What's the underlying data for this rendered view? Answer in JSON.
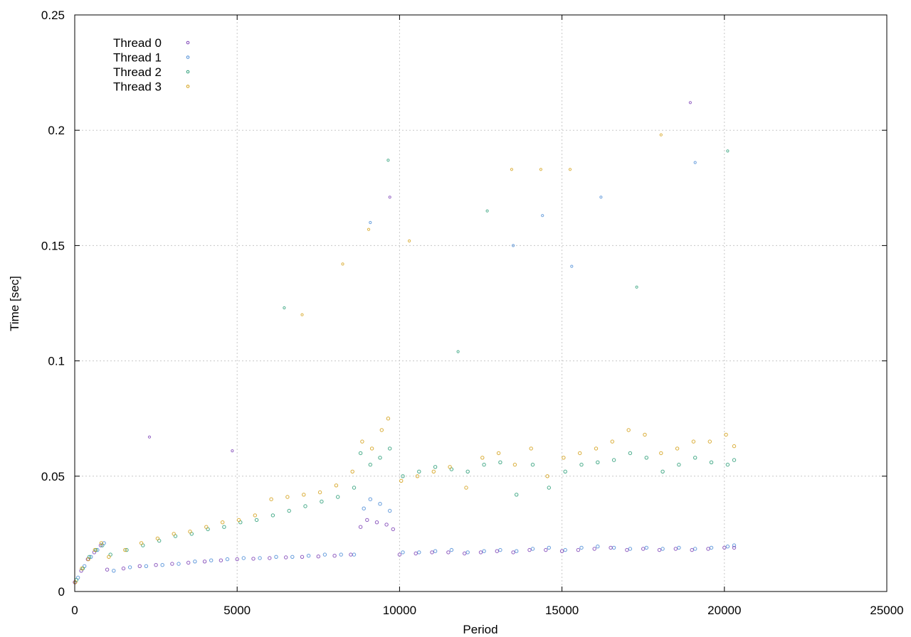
{
  "chart_data": {
    "type": "scatter",
    "title": "",
    "xlabel": "Period",
    "ylabel": "Time [sec]",
    "xlim": [
      0,
      25000
    ],
    "ylim": [
      0,
      0.25
    ],
    "x_ticks": [
      "0",
      "5000",
      "10000",
      "15000",
      "20000",
      "25000"
    ],
    "y_ticks": [
      "0",
      "0.05",
      "0.1",
      "0.15",
      "0.2",
      "0.25"
    ],
    "grid": true,
    "legend_position": "top-left",
    "series": [
      {
        "name": "Thread 0",
        "color": "#7b3fb5",
        "points": [
          [
            0,
            0.004
          ],
          [
            200,
            0.009
          ],
          [
            400,
            0.014
          ],
          [
            600,
            0.017
          ],
          [
            800,
            0.02
          ],
          [
            1000,
            0.0095
          ],
          [
            1500,
            0.01
          ],
          [
            2000,
            0.011
          ],
          [
            2500,
            0.0115
          ],
          [
            3000,
            0.012
          ],
          [
            3500,
            0.0125
          ],
          [
            4000,
            0.013
          ],
          [
            4500,
            0.0135
          ],
          [
            5000,
            0.014
          ],
          [
            5500,
            0.0142
          ],
          [
            6000,
            0.0145
          ],
          [
            6500,
            0.0148
          ],
          [
            7000,
            0.015
          ],
          [
            7500,
            0.0152
          ],
          [
            8000,
            0.0155
          ],
          [
            8500,
            0.016
          ],
          [
            8800,
            0.028
          ],
          [
            9000,
            0.031
          ],
          [
            9300,
            0.03
          ],
          [
            9600,
            0.029
          ],
          [
            9800,
            0.027
          ],
          [
            10000,
            0.016
          ],
          [
            10500,
            0.0165
          ],
          [
            11000,
            0.017
          ],
          [
            11500,
            0.017
          ],
          [
            12000,
            0.0165
          ],
          [
            12500,
            0.017
          ],
          [
            13000,
            0.0175
          ],
          [
            13500,
            0.017
          ],
          [
            14000,
            0.018
          ],
          [
            14500,
            0.018
          ],
          [
            15000,
            0.0175
          ],
          [
            15500,
            0.018
          ],
          [
            16000,
            0.0185
          ],
          [
            16500,
            0.019
          ],
          [
            17000,
            0.018
          ],
          [
            17500,
            0.0185
          ],
          [
            18000,
            0.018
          ],
          [
            18500,
            0.0185
          ],
          [
            19000,
            0.018
          ],
          [
            19500,
            0.0185
          ],
          [
            20000,
            0.019
          ],
          [
            20300,
            0.019
          ]
        ]
      },
      {
        "name": "Thread 1",
        "color": "#4a8bd6",
        "points": [
          [
            100,
            0.006
          ],
          [
            300,
            0.011
          ],
          [
            500,
            0.015
          ],
          [
            700,
            0.018
          ],
          [
            900,
            0.021
          ],
          [
            1200,
            0.009
          ],
          [
            1700,
            0.0105
          ],
          [
            2200,
            0.011
          ],
          [
            2700,
            0.0115
          ],
          [
            3200,
            0.012
          ],
          [
            3700,
            0.013
          ],
          [
            4200,
            0.0135
          ],
          [
            4700,
            0.014
          ],
          [
            5200,
            0.0145
          ],
          [
            5700,
            0.0145
          ],
          [
            6200,
            0.015
          ],
          [
            6700,
            0.015
          ],
          [
            7200,
            0.0155
          ],
          [
            7700,
            0.016
          ],
          [
            8200,
            0.016
          ],
          [
            8600,
            0.016
          ],
          [
            8900,
            0.036
          ],
          [
            9100,
            0.04
          ],
          [
            9400,
            0.038
          ],
          [
            9700,
            0.035
          ],
          [
            10100,
            0.017
          ],
          [
            10600,
            0.017
          ],
          [
            11100,
            0.0175
          ],
          [
            11600,
            0.018
          ],
          [
            12100,
            0.017
          ],
          [
            12600,
            0.0175
          ],
          [
            13100,
            0.018
          ],
          [
            13600,
            0.0175
          ],
          [
            14100,
            0.0185
          ],
          [
            14600,
            0.019
          ],
          [
            15100,
            0.018
          ],
          [
            15600,
            0.019
          ],
          [
            16100,
            0.0195
          ],
          [
            16600,
            0.019
          ],
          [
            17100,
            0.0185
          ],
          [
            17600,
            0.019
          ],
          [
            18100,
            0.0185
          ],
          [
            18600,
            0.019
          ],
          [
            19100,
            0.0185
          ],
          [
            19600,
            0.019
          ],
          [
            20100,
            0.0195
          ],
          [
            20300,
            0.02
          ]
        ]
      },
      {
        "name": "Thread 2",
        "color": "#2a9d77",
        "points": [
          [
            50,
            0.005
          ],
          [
            250,
            0.01
          ],
          [
            450,
            0.015
          ],
          [
            650,
            0.018
          ],
          [
            850,
            0.02
          ],
          [
            1100,
            0.016
          ],
          [
            1600,
            0.018
          ],
          [
            2100,
            0.02
          ],
          [
            2600,
            0.022
          ],
          [
            3100,
            0.024
          ],
          [
            3600,
            0.025
          ],
          [
            4100,
            0.027
          ],
          [
            4600,
            0.028
          ],
          [
            5100,
            0.03
          ],
          [
            5600,
            0.031
          ],
          [
            6100,
            0.033
          ],
          [
            6600,
            0.035
          ],
          [
            7100,
            0.037
          ],
          [
            7600,
            0.039
          ],
          [
            8100,
            0.041
          ],
          [
            8600,
            0.045
          ],
          [
            8800,
            0.06
          ],
          [
            9100,
            0.055
          ],
          [
            9400,
            0.058
          ],
          [
            9700,
            0.062
          ],
          [
            10100,
            0.05
          ],
          [
            10600,
            0.052
          ],
          [
            11100,
            0.054
          ],
          [
            11600,
            0.053
          ],
          [
            12100,
            0.052
          ],
          [
            12600,
            0.055
          ],
          [
            13100,
            0.056
          ],
          [
            13600,
            0.042
          ],
          [
            14100,
            0.055
          ],
          [
            14600,
            0.045
          ],
          [
            15100,
            0.052
          ],
          [
            15600,
            0.055
          ],
          [
            16100,
            0.056
          ],
          [
            16600,
            0.057
          ],
          [
            17100,
            0.06
          ],
          [
            17600,
            0.058
          ],
          [
            18100,
            0.052
          ],
          [
            18600,
            0.055
          ],
          [
            19100,
            0.058
          ],
          [
            19600,
            0.056
          ],
          [
            20100,
            0.055
          ],
          [
            20300,
            0.057
          ]
        ]
      },
      {
        "name": "Thread 3",
        "color": "#d4a017",
        "points": [
          [
            20,
            0.004
          ],
          [
            220,
            0.01
          ],
          [
            420,
            0.014
          ],
          [
            620,
            0.018
          ],
          [
            820,
            0.021
          ],
          [
            1050,
            0.015
          ],
          [
            1550,
            0.018
          ],
          [
            2050,
            0.021
          ],
          [
            2550,
            0.023
          ],
          [
            3050,
            0.025
          ],
          [
            3550,
            0.026
          ],
          [
            4050,
            0.028
          ],
          [
            4550,
            0.03
          ],
          [
            5050,
            0.031
          ],
          [
            5550,
            0.033
          ],
          [
            6050,
            0.04
          ],
          [
            6550,
            0.041
          ],
          [
            7050,
            0.042
          ],
          [
            7550,
            0.043
          ],
          [
            8050,
            0.046
          ],
          [
            8550,
            0.052
          ],
          [
            8850,
            0.065
          ],
          [
            9150,
            0.062
          ],
          [
            9450,
            0.07
          ],
          [
            9650,
            0.075
          ],
          [
            10050,
            0.048
          ],
          [
            10550,
            0.05
          ],
          [
            11050,
            0.052
          ],
          [
            11550,
            0.054
          ],
          [
            12050,
            0.045
          ],
          [
            12550,
            0.058
          ],
          [
            13050,
            0.06
          ],
          [
            13550,
            0.055
          ],
          [
            14050,
            0.062
          ],
          [
            14550,
            0.05
          ],
          [
            15050,
            0.058
          ],
          [
            15550,
            0.06
          ],
          [
            16050,
            0.062
          ],
          [
            16550,
            0.065
          ],
          [
            17050,
            0.07
          ],
          [
            17550,
            0.068
          ],
          [
            18050,
            0.06
          ],
          [
            18550,
            0.062
          ],
          [
            19050,
            0.065
          ],
          [
            19550,
            0.065
          ],
          [
            20050,
            0.068
          ],
          [
            20300,
            0.063
          ]
        ]
      }
    ],
    "outliers": [
      {
        "series": "Thread 0",
        "points": [
          [
            18950,
            0.212
          ],
          [
            9700,
            0.171
          ],
          [
            4850,
            0.061
          ],
          [
            2300,
            0.067
          ]
        ]
      },
      {
        "series": "Thread 1",
        "points": [
          [
            14400,
            0.163
          ],
          [
            15300,
            0.141
          ],
          [
            16200,
            0.171
          ],
          [
            19100,
            0.186
          ],
          [
            13500,
            0.15
          ],
          [
            9100,
            0.16
          ]
        ]
      },
      {
        "series": "Thread 2",
        "points": [
          [
            9650,
            0.187
          ],
          [
            20100,
            0.191
          ],
          [
            12700,
            0.165
          ],
          [
            17300,
            0.132
          ],
          [
            11800,
            0.104
          ],
          [
            6450,
            0.123
          ]
        ]
      },
      {
        "series": "Thread 3",
        "points": [
          [
            8250,
            0.142
          ],
          [
            9050,
            0.157
          ],
          [
            13450,
            0.183
          ],
          [
            14350,
            0.183
          ],
          [
            15250,
            0.183
          ],
          [
            18050,
            0.198
          ],
          [
            7000,
            0.12
          ],
          [
            10300,
            0.152
          ]
        ]
      }
    ]
  }
}
